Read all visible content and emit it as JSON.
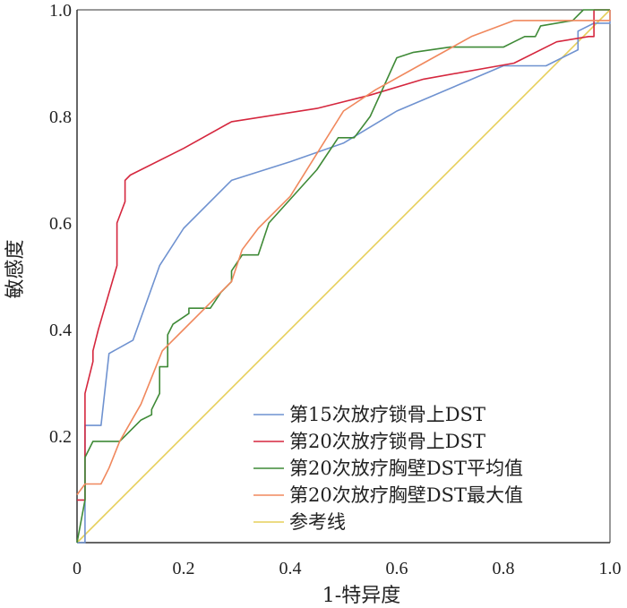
{
  "chart_data": {
    "type": "line",
    "title": "",
    "xlabel": "1-特异度",
    "ylabel": "敏感度",
    "xlim": [
      0,
      1
    ],
    "ylim": [
      0,
      1
    ],
    "x_ticks": [
      0,
      0.2,
      0.4,
      0.6,
      0.8,
      1.0
    ],
    "x_tick_labels": [
      "0",
      "0.2",
      "0.4",
      "0.6",
      "0.8",
      "1.0"
    ],
    "y_ticks": [
      0.2,
      0.4,
      0.6,
      0.8,
      1.0
    ],
    "y_tick_labels": [
      "0.2",
      "0.4",
      "0.6",
      "0.8",
      "1.0"
    ],
    "grid": false,
    "legend_position": "bottom-right",
    "series": [
      {
        "name": "第15次放疗锁骨上DST",
        "color": "#6f92d0",
        "points": [
          [
            0,
            0
          ],
          [
            0.015,
            0
          ],
          [
            0.015,
            0.22
          ],
          [
            0.045,
            0.22
          ],
          [
            0.06,
            0.355
          ],
          [
            0.105,
            0.38
          ],
          [
            0.155,
            0.52
          ],
          [
            0.2,
            0.59
          ],
          [
            0.29,
            0.68
          ],
          [
            0.4,
            0.715
          ],
          [
            0.5,
            0.75
          ],
          [
            0.6,
            0.81
          ],
          [
            0.8,
            0.895
          ],
          [
            0.88,
            0.895
          ],
          [
            0.94,
            0.925
          ],
          [
            0.94,
            0.96
          ],
          [
            0.97,
            0.975
          ],
          [
            1.0,
            0.975
          ],
          [
            1.0,
            1.0
          ]
        ]
      },
      {
        "name": "第20次放疗锁骨上DST",
        "color": "#d5273e",
        "points": [
          [
            0,
            0.08
          ],
          [
            0.015,
            0.08
          ],
          [
            0.015,
            0.28
          ],
          [
            0.03,
            0.34
          ],
          [
            0.03,
            0.36
          ],
          [
            0.04,
            0.4
          ],
          [
            0.075,
            0.52
          ],
          [
            0.075,
            0.6
          ],
          [
            0.09,
            0.64
          ],
          [
            0.09,
            0.68
          ],
          [
            0.1,
            0.69
          ],
          [
            0.2,
            0.74
          ],
          [
            0.29,
            0.79
          ],
          [
            0.45,
            0.815
          ],
          [
            0.55,
            0.84
          ],
          [
            0.65,
            0.87
          ],
          [
            0.82,
            0.9
          ],
          [
            0.9,
            0.94
          ],
          [
            0.96,
            0.95
          ],
          [
            0.97,
            0.95
          ],
          [
            0.97,
            1.0
          ],
          [
            1.0,
            1.0
          ]
        ]
      },
      {
        "name": "第20次放疗胸壁DST平均值",
        "color": "#3f8a37",
        "points": [
          [
            0,
            0
          ],
          [
            0.015,
            0.08
          ],
          [
            0.015,
            0.16
          ],
          [
            0.03,
            0.19
          ],
          [
            0.08,
            0.19
          ],
          [
            0.12,
            0.23
          ],
          [
            0.14,
            0.24
          ],
          [
            0.14,
            0.25
          ],
          [
            0.155,
            0.28
          ],
          [
            0.155,
            0.33
          ],
          [
            0.17,
            0.33
          ],
          [
            0.17,
            0.39
          ],
          [
            0.18,
            0.41
          ],
          [
            0.21,
            0.43
          ],
          [
            0.21,
            0.44
          ],
          [
            0.25,
            0.44
          ],
          [
            0.27,
            0.47
          ],
          [
            0.29,
            0.49
          ],
          [
            0.29,
            0.51
          ],
          [
            0.31,
            0.54
          ],
          [
            0.34,
            0.54
          ],
          [
            0.36,
            0.6
          ],
          [
            0.45,
            0.7
          ],
          [
            0.49,
            0.76
          ],
          [
            0.52,
            0.76
          ],
          [
            0.55,
            0.8
          ],
          [
            0.6,
            0.91
          ],
          [
            0.63,
            0.92
          ],
          [
            0.7,
            0.93
          ],
          [
            0.76,
            0.93
          ],
          [
            0.8,
            0.93
          ],
          [
            0.82,
            0.94
          ],
          [
            0.84,
            0.95
          ],
          [
            0.86,
            0.95
          ],
          [
            0.87,
            0.97
          ],
          [
            0.93,
            0.98
          ],
          [
            0.95,
            1.0
          ],
          [
            1.0,
            1.0
          ]
        ]
      },
      {
        "name": "第20次放疗胸壁DST最大值",
        "color": "#f0885d",
        "points": [
          [
            0,
            0.09
          ],
          [
            0.015,
            0.11
          ],
          [
            0.045,
            0.11
          ],
          [
            0.06,
            0.14
          ],
          [
            0.08,
            0.19
          ],
          [
            0.12,
            0.26
          ],
          [
            0.16,
            0.36
          ],
          [
            0.2,
            0.4
          ],
          [
            0.24,
            0.44
          ],
          [
            0.29,
            0.49
          ],
          [
            0.31,
            0.55
          ],
          [
            0.34,
            0.59
          ],
          [
            0.4,
            0.65
          ],
          [
            0.5,
            0.81
          ],
          [
            0.56,
            0.85
          ],
          [
            0.65,
            0.9
          ],
          [
            0.74,
            0.95
          ],
          [
            0.82,
            0.98
          ],
          [
            0.93,
            0.98
          ],
          [
            0.95,
            0.98
          ],
          [
            0.98,
            0.98
          ],
          [
            1.0,
            0.98
          ],
          [
            1.0,
            1.0
          ]
        ]
      },
      {
        "name": "参考线",
        "color": "#e6cf5a",
        "points": [
          [
            0,
            0
          ],
          [
            1.0,
            1.0
          ]
        ]
      }
    ]
  }
}
